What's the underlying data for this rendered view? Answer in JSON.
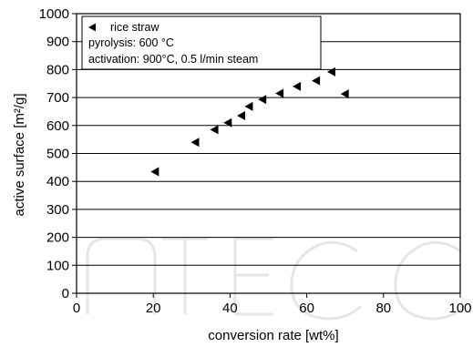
{
  "chart_data": {
    "type": "scatter",
    "title": "",
    "xlabel": "conversion rate [wt%]",
    "ylabel": "active surface [m²/g]",
    "xlim": [
      0,
      100
    ],
    "ylim": [
      0,
      1000
    ],
    "xticks": [
      0,
      20,
      40,
      60,
      80,
      100
    ],
    "yticks": [
      0,
      100,
      200,
      300,
      400,
      500,
      600,
      700,
      800,
      900,
      1000
    ],
    "grid": "horizontal",
    "marker": "left-pointing triangle",
    "series": [
      {
        "name": "rice straw",
        "color": "#000000",
        "points": [
          {
            "x": 20.5,
            "y": 435
          },
          {
            "x": 31,
            "y": 540
          },
          {
            "x": 36,
            "y": 585
          },
          {
            "x": 39.5,
            "y": 610
          },
          {
            "x": 43,
            "y": 635
          },
          {
            "x": 45,
            "y": 668
          },
          {
            "x": 48.5,
            "y": 693
          },
          {
            "x": 53,
            "y": 715
          },
          {
            "x": 57.5,
            "y": 740
          },
          {
            "x": 62.5,
            "y": 760
          },
          {
            "x": 66.5,
            "y": 792
          },
          {
            "x": 70,
            "y": 713
          }
        ]
      }
    ],
    "legend": {
      "placement": "top-left",
      "series_label": "rice straw",
      "lines": [
        "pyrolysis: 600 °C",
        "activation: 900°C, 0.5 l/min steam"
      ]
    }
  }
}
